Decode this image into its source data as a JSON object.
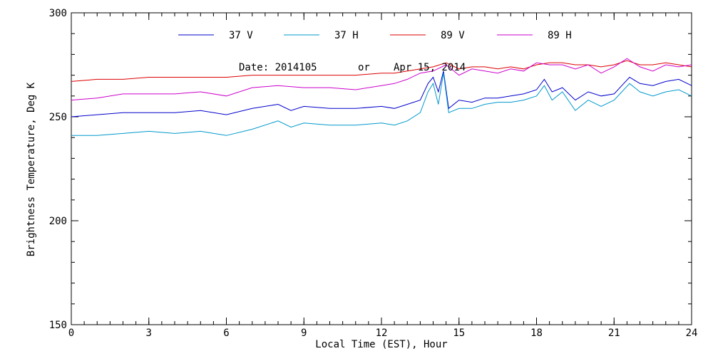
{
  "chart_data": {
    "type": "line",
    "title": "",
    "annotation": {
      "date_label": "Date: 2014105",
      "or_label": "or",
      "date_text": "Apr 15, 2014"
    },
    "xlabel": "Local Time (EST), Hour",
    "ylabel": "Brightness Temperature, Deg K",
    "xlim": [
      0,
      24
    ],
    "ylim": [
      150,
      300
    ],
    "x_ticks": [
      0,
      3,
      6,
      9,
      12,
      15,
      18,
      21,
      24
    ],
    "y_ticks": [
      150,
      200,
      250,
      300
    ],
    "x_minor_step": 0.5,
    "y_minor_step": 10,
    "grid": false,
    "legend_position": "top",
    "series": [
      {
        "name": "37 V",
        "color": "#0000cc",
        "x": [
          0,
          1,
          2,
          3,
          4,
          5,
          6,
          7,
          8,
          8.5,
          9,
          10,
          11,
          12,
          12.5,
          13,
          13.5,
          13.8,
          14,
          14.2,
          14.4,
          14.6,
          15,
          15.5,
          16,
          16.5,
          17,
          17.5,
          18,
          18.3,
          18.6,
          19,
          19.5,
          20,
          20.5,
          21,
          21.3,
          21.6,
          22,
          22.5,
          23,
          23.5,
          24
        ],
        "y": [
          250,
          251,
          252,
          252,
          252,
          253,
          251,
          254,
          256,
          253,
          255,
          254,
          254,
          255,
          254,
          256,
          258,
          266,
          269,
          262,
          272,
          254,
          258,
          257,
          259,
          259,
          260,
          261,
          263,
          268,
          262,
          264,
          258,
          262,
          260,
          261,
          265,
          269,
          266,
          265,
          267,
          268,
          265
        ]
      },
      {
        "name": "37 H",
        "color": "#0099cc",
        "x": [
          0,
          1,
          2,
          3,
          4,
          5,
          6,
          7,
          8,
          8.5,
          9,
          10,
          11,
          12,
          12.5,
          13,
          13.5,
          13.8,
          14,
          14.2,
          14.4,
          14.6,
          15,
          15.5,
          16,
          16.5,
          17,
          17.5,
          18,
          18.3,
          18.6,
          19,
          19.5,
          20,
          20.5,
          21,
          21.3,
          21.6,
          22,
          22.5,
          23,
          23.5,
          24
        ],
        "y": [
          241,
          241,
          242,
          243,
          242,
          243,
          241,
          244,
          248,
          245,
          247,
          246,
          246,
          247,
          246,
          248,
          252,
          262,
          266,
          256,
          271,
          252,
          254,
          254,
          256,
          257,
          257,
          258,
          260,
          265,
          258,
          262,
          253,
          258,
          255,
          258,
          262,
          266,
          262,
          260,
          262,
          263,
          260
        ]
      },
      {
        "name": "89 V",
        "color": "#dd0000",
        "x": [
          0,
          1,
          2,
          3,
          4,
          5,
          6,
          7,
          8,
          9,
          10,
          11,
          12,
          12.5,
          13,
          13.5,
          14,
          14.5,
          15,
          15.5,
          16,
          16.5,
          17,
          17.5,
          18,
          18.5,
          19,
          19.5,
          20,
          20.5,
          21,
          21.5,
          22,
          22.5,
          23,
          23.5,
          24
        ],
        "y": [
          267,
          268,
          268,
          269,
          269,
          269,
          269,
          270,
          270,
          270,
          270,
          270,
          271,
          271,
          272,
          273,
          274,
          276,
          273,
          274,
          274,
          273,
          274,
          273,
          275,
          276,
          276,
          275,
          275,
          274,
          275,
          277,
          275,
          275,
          276,
          275,
          274
        ]
      },
      {
        "name": "89 H",
        "color": "#cc00cc",
        "x": [
          0,
          1,
          2,
          3,
          4,
          5,
          6,
          7,
          8,
          9,
          10,
          11,
          12,
          12.5,
          13,
          13.5,
          14,
          14.5,
          15,
          15.5,
          16,
          16.5,
          17,
          17.5,
          18,
          18.5,
          19,
          19.5,
          20,
          20.5,
          21,
          21.5,
          22,
          22.5,
          23,
          23.5,
          24
        ],
        "y": [
          258,
          259,
          261,
          261,
          261,
          262,
          260,
          264,
          265,
          264,
          264,
          263,
          265,
          266,
          268,
          271,
          272,
          275,
          270,
          273,
          272,
          271,
          273,
          272,
          276,
          275,
          275,
          273,
          275,
          271,
          274,
          278,
          274,
          272,
          275,
          274,
          275
        ]
      }
    ]
  }
}
